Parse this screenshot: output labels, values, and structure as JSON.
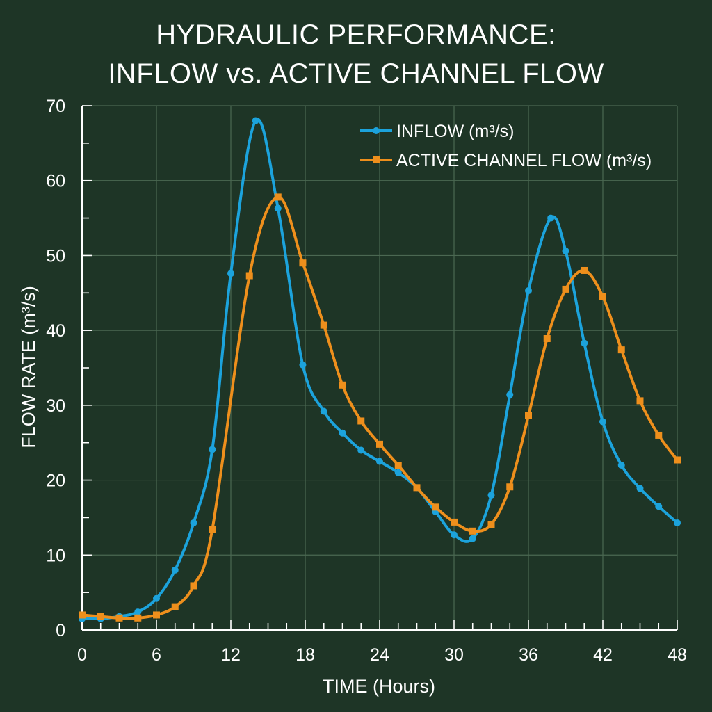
{
  "chart_data": {
    "type": "line",
    "title_lines": [
      "HYDRAULIC PERFORMANCE:",
      "INFLOW vs. ACTIVE CHANNEL FLOW"
    ],
    "xlabel": "TIME (Hours)",
    "ylabel": "FLOW RATE (m³/s)",
    "xlim": [
      0,
      48
    ],
    "ylim": [
      0,
      70
    ],
    "xticks": [
      0,
      6,
      12,
      18,
      24,
      30,
      36,
      42,
      48
    ],
    "yticks": [
      0,
      10,
      20,
      30,
      40,
      50,
      60,
      70
    ],
    "grid": true,
    "legend_position": "top-right",
    "series": [
      {
        "name": "INFLOW (m³/s)",
        "color": "#1ca3dc",
        "marker": "circle",
        "x": [
          0,
          1.5,
          3,
          4.5,
          6,
          7.5,
          9,
          10.5,
          12,
          14,
          15.8,
          17.8,
          19.5,
          21,
          22.5,
          24,
          25.5,
          27,
          28.5,
          30,
          31.5,
          33,
          34.5,
          36,
          37.8,
          39,
          40.5,
          42,
          43.5,
          45,
          46.5,
          48
        ],
        "y": [
          1.5,
          1.5,
          1.8,
          2.4,
          4.2,
          8,
          14.3,
          24.1,
          47.6,
          68,
          56.3,
          35.4,
          29.2,
          26.3,
          24,
          22.5,
          21,
          19,
          15.8,
          12.7,
          12.2,
          18,
          31.4,
          45.3,
          55,
          50.6,
          38.3,
          27.8,
          22,
          18.9,
          16.5,
          14.3
        ]
      },
      {
        "name": "ACTIVE CHANNEL FLOW (m³/s)",
        "color": "#ee8f1c",
        "marker": "square",
        "x": [
          0,
          1.5,
          3,
          4.5,
          6,
          7.5,
          9,
          10.5,
          13.5,
          15.8,
          17.8,
          19.5,
          21,
          22.5,
          24,
          25.5,
          27,
          28.5,
          30,
          31.5,
          33,
          34.5,
          36,
          37.5,
          39,
          40.5,
          42,
          43.5,
          45,
          46.5,
          48
        ],
        "y": [
          2,
          1.8,
          1.6,
          1.6,
          2,
          3.1,
          5.9,
          13.4,
          47.3,
          57.8,
          49,
          40.7,
          32.7,
          27.9,
          24.8,
          22,
          19,
          16.4,
          14.4,
          13.2,
          14.1,
          19.1,
          28.6,
          38.9,
          45.5,
          48,
          44.5,
          37.4,
          30.6,
          26,
          22.7
        ]
      }
    ]
  }
}
